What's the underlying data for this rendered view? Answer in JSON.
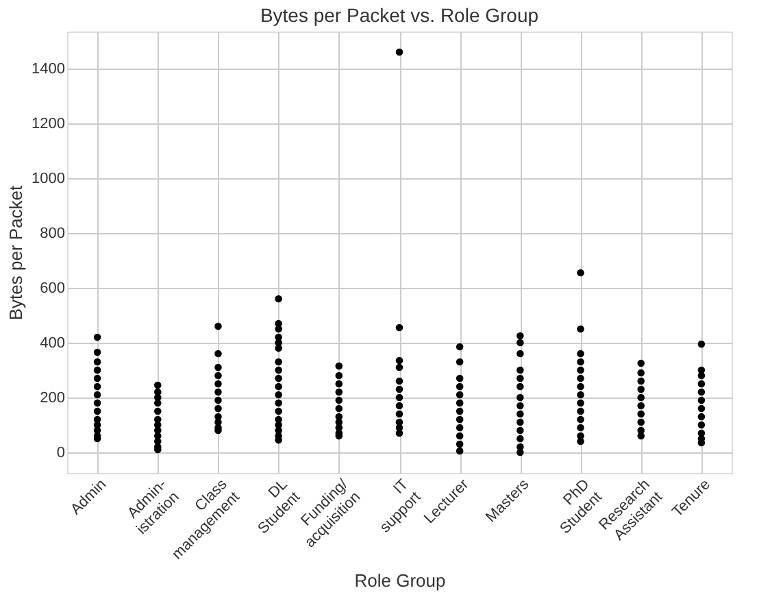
{
  "chart_data": {
    "type": "scatter",
    "title": "Bytes per Packet vs. Role Group",
    "xlabel": "Role Group",
    "ylabel": "Bytes per Packet",
    "categories": [
      "Admin",
      "Admin-\nistration",
      "Class\nmanagement",
      "DL\nStudent",
      "Funding/\nacquisition",
      "IT\nsupport",
      "Lecturer",
      "Masters",
      "PhD\nStudent",
      "Research\nAssistant",
      "Tenure"
    ],
    "ylim": [
      -75,
      1535
    ],
    "yticks": [
      0,
      200,
      400,
      600,
      800,
      1000,
      1200,
      1400
    ],
    "grid": true,
    "marker": "circle",
    "legend": false,
    "series": [
      {
        "color": "#000000",
        "x": [
          "Admin",
          "Admin",
          "Admin",
          "Admin",
          "Admin",
          "Admin",
          "Admin",
          "Admin",
          "Admin",
          "Admin",
          "Admin",
          "Admin",
          "Admin",
          "Admin",
          "Admin-\nistration",
          "Admin-\nistration",
          "Admin-\nistration",
          "Admin-\nistration",
          "Admin-\nistration",
          "Admin-\nistration",
          "Admin-\nistration",
          "Admin-\nistration",
          "Admin-\nistration",
          "Admin-\nistration",
          "Admin-\nistration",
          "Admin-\nistration",
          "Class\nmanagement",
          "Class\nmanagement",
          "Class\nmanagement",
          "Class\nmanagement",
          "Class\nmanagement",
          "Class\nmanagement",
          "Class\nmanagement",
          "Class\nmanagement",
          "Class\nmanagement",
          "Class\nmanagement",
          "Class\nmanagement",
          "Class\nmanagement",
          "DL\nStudent",
          "DL\nStudent",
          "DL\nStudent",
          "DL\nStudent",
          "DL\nStudent",
          "DL\nStudent",
          "DL\nStudent",
          "DL\nStudent",
          "DL\nStudent",
          "DL\nStudent",
          "DL\nStudent",
          "DL\nStudent",
          "DL\nStudent",
          "DL\nStudent",
          "DL\nStudent",
          "DL\nStudent",
          "DL\nStudent",
          "DL\nStudent",
          "Funding/\nacquisition",
          "Funding/\nacquisition",
          "Funding/\nacquisition",
          "Funding/\nacquisition",
          "Funding/\nacquisition",
          "Funding/\nacquisition",
          "Funding/\nacquisition",
          "Funding/\nacquisition",
          "Funding/\nacquisition",
          "Funding/\nacquisition",
          "Funding/\nacquisition",
          "IT\nsupport",
          "IT\nsupport",
          "IT\nsupport",
          "IT\nsupport",
          "IT\nsupport",
          "IT\nsupport",
          "IT\nsupport",
          "IT\nsupport",
          "IT\nsupport",
          "IT\nsupport",
          "IT\nsupport",
          "IT\nsupport",
          "Lecturer",
          "Lecturer",
          "Lecturer",
          "Lecturer",
          "Lecturer",
          "Lecturer",
          "Lecturer",
          "Lecturer",
          "Lecturer",
          "Lecturer",
          "Lecturer",
          "Lecturer",
          "Masters",
          "Masters",
          "Masters",
          "Masters",
          "Masters",
          "Masters",
          "Masters",
          "Masters",
          "Masters",
          "Masters",
          "Masters",
          "Masters",
          "Masters",
          "Masters",
          "PhD\nStudent",
          "PhD\nStudent",
          "PhD\nStudent",
          "PhD\nStudent",
          "PhD\nStudent",
          "PhD\nStudent",
          "PhD\nStudent",
          "PhD\nStudent",
          "PhD\nStudent",
          "PhD\nStudent",
          "PhD\nStudent",
          "PhD\nStudent",
          "PhD\nStudent",
          "PhD\nStudent",
          "Research\nAssistant",
          "Research\nAssistant",
          "Research\nAssistant",
          "Research\nAssistant",
          "Research\nAssistant",
          "Research\nAssistant",
          "Research\nAssistant",
          "Research\nAssistant",
          "Research\nAssistant",
          "Research\nAssistant",
          "Tenure",
          "Tenure",
          "Tenure",
          "Tenure",
          "Tenure",
          "Tenure",
          "Tenure",
          "Tenure",
          "Tenure",
          "Tenure",
          "Tenure",
          "Tenure"
        ],
        "values": [
          420,
          365,
          330,
          300,
          270,
          240,
          210,
          180,
          150,
          120,
          100,
          80,
          60,
          50,
          245,
          220,
          200,
          180,
          150,
          120,
          100,
          80,
          60,
          40,
          20,
          10,
          460,
          360,
          310,
          280,
          250,
          220,
          190,
          160,
          130,
          110,
          90,
          80,
          560,
          470,
          450,
          420,
          400,
          380,
          330,
          300,
          270,
          240,
          210,
          180,
          150,
          120,
          100,
          80,
          60,
          45,
          315,
          280,
          250,
          220,
          190,
          160,
          130,
          110,
          90,
          70,
          60,
          1460,
          455,
          335,
          310,
          260,
          230,
          200,
          170,
          140,
          110,
          90,
          70,
          385,
          330,
          270,
          240,
          210,
          180,
          150,
          120,
          90,
          60,
          30,
          5,
          425,
          400,
          360,
          300,
          270,
          240,
          200,
          170,
          140,
          110,
          80,
          50,
          20,
          0,
          655,
          450,
          360,
          330,
          300,
          270,
          240,
          210,
          180,
          150,
          120,
          90,
          60,
          40,
          325,
          290,
          260,
          230,
          200,
          170,
          140,
          110,
          80,
          60,
          395,
          300,
          280,
          250,
          220,
          190,
          160,
          130,
          100,
          70,
          50,
          35
        ]
      }
    ]
  }
}
